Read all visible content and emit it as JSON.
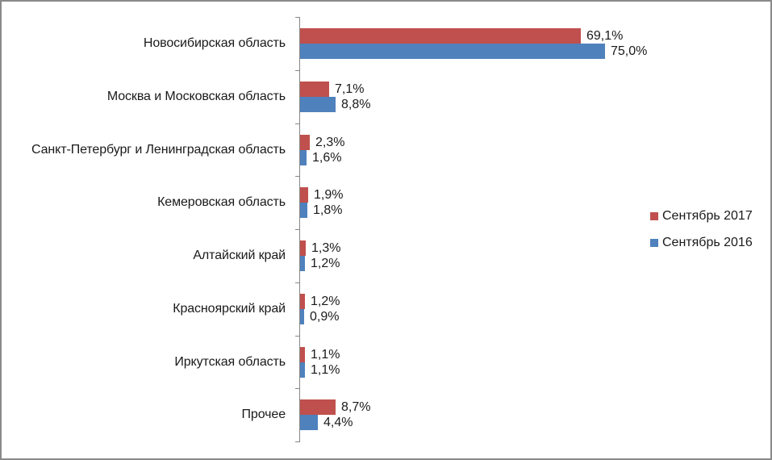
{
  "chart_data": {
    "type": "bar",
    "orientation": "horizontal",
    "title": "",
    "xlabel": "",
    "ylabel": "",
    "categories": [
      "Новосибирская область",
      "Москва и Московская область",
      "Санкт-Петербург и Ленинградская область",
      "Кемеровская область",
      "Алтайский край",
      "Красноярский край",
      "Иркутская область",
      "Прочее"
    ],
    "series": [
      {
        "name": "Сентябрь 2017",
        "color": "#C0504D",
        "values": [
          69.1,
          7.1,
          2.3,
          1.9,
          1.3,
          1.2,
          1.1,
          8.7
        ],
        "labels": [
          "69,1%",
          "7,1%",
          "2,3%",
          "1,9%",
          "1,3%",
          "1,2%",
          "1,1%",
          "8,7%"
        ]
      },
      {
        "name": "Сентябрь 2016",
        "color": "#4F81BD",
        "values": [
          75.0,
          8.8,
          1.6,
          1.8,
          1.2,
          0.9,
          1.1,
          4.4
        ],
        "labels": [
          "75,0%",
          "8,8%",
          "1,6%",
          "1,8%",
          "1,2%",
          "0,9%",
          "1,1%",
          "4,4%"
        ]
      }
    ],
    "value_axis_visible": false,
    "grid": false,
    "legend_position": "right",
    "data_labels": true,
    "unit": "%"
  },
  "legend": {
    "items": [
      {
        "label": "Сентябрь 2017",
        "color": "#C0504D"
      },
      {
        "label": "Сентябрь 2016",
        "color": "#4F81BD"
      }
    ]
  }
}
